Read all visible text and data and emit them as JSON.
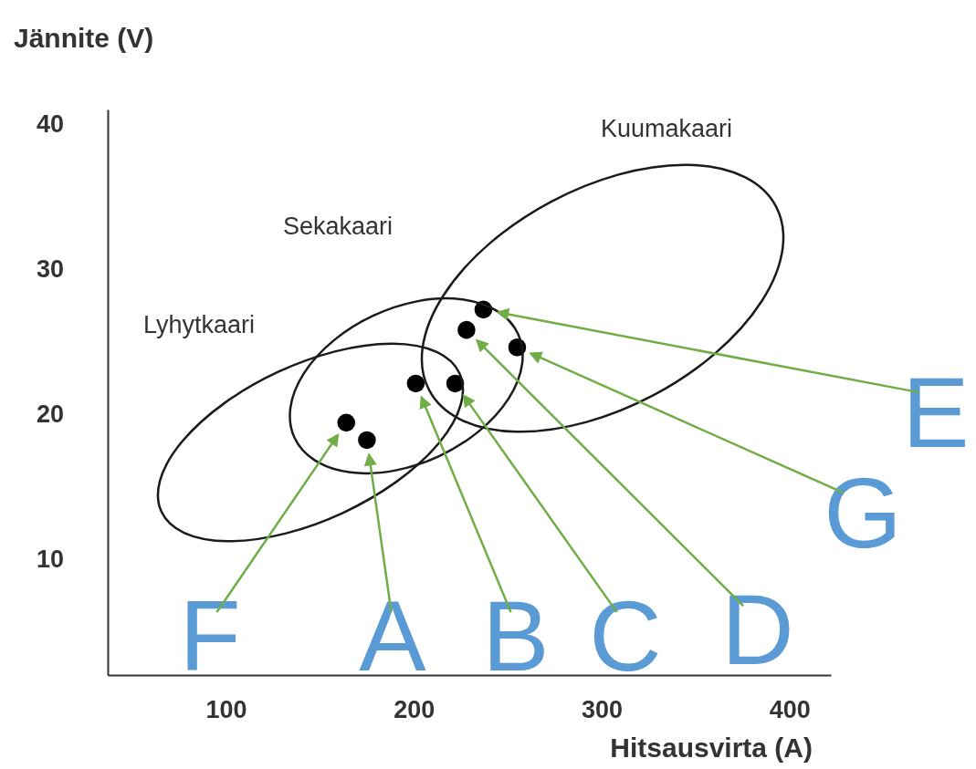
{
  "chart_data": {
    "type": "scatter",
    "xlabel": "Hitsausvirta  (A)",
    "ylabel": "Jännite   (V)",
    "xlim": [
      37,
      422
    ],
    "ylim": [
      2,
      41
    ],
    "xticks": [
      100,
      200,
      300,
      400
    ],
    "yticks": [
      10,
      20,
      30,
      40
    ],
    "grid": false,
    "marker": "circle",
    "series": [
      {
        "color": "#000000",
        "x": [
          164,
          175,
          201,
          222,
          228,
          237,
          255
        ],
        "values": [
          19.4,
          18.2,
          22.1,
          22.1,
          25.8,
          27.2,
          24.6
        ]
      }
    ],
    "annotations": [
      {
        "text": "F",
        "x": 164,
        "y": 19.4
      },
      {
        "text": "A",
        "x": 175,
        "y": 18.2
      },
      {
        "text": "B",
        "x": 201,
        "y": 22.1
      },
      {
        "text": "C",
        "x": 222,
        "y": 22.1
      },
      "D",
      "E",
      "G",
      "Lyhytkaari",
      "Sekakaari",
      "Kuumakaari"
    ]
  }
}
